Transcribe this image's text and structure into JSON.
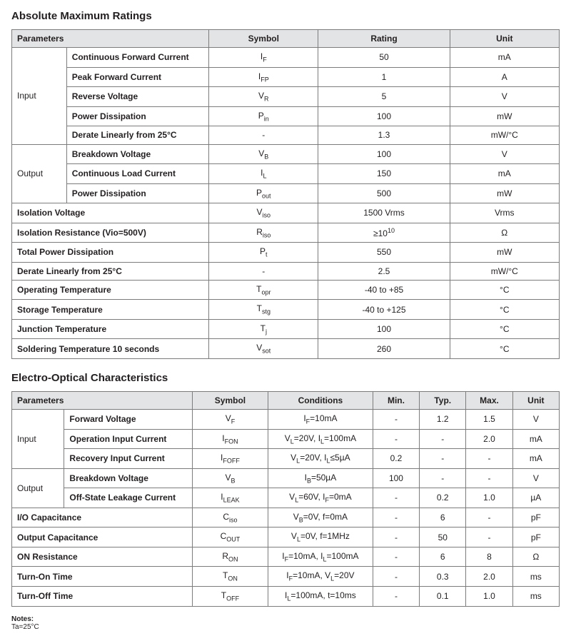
{
  "section1": {
    "title": "Absolute Maximum Ratings",
    "columns": [
      "Parameters",
      "Symbol",
      "Rating",
      "Unit"
    ],
    "groups": [
      {
        "label": "Input",
        "rows": [
          {
            "param": "Continuous Forward Current",
            "symbol": "I<sub>F</sub>",
            "rating": "50",
            "unit": "mA"
          },
          {
            "param": "Peak Forward Current",
            "symbol": "I<sub>FP</sub>",
            "rating": "1",
            "unit": "A"
          },
          {
            "param": "Reverse Voltage",
            "symbol": "V<sub>R</sub>",
            "rating": "5",
            "unit": "V"
          },
          {
            "param": "Power Dissipation",
            "symbol": "P<sub>in</sub>",
            "rating": "100",
            "unit": "mW"
          },
          {
            "param": "Derate Linearly from 25°C",
            "symbol": "-",
            "rating": "1.3",
            "unit": "mW/°C"
          }
        ]
      },
      {
        "label": "Output",
        "rows": [
          {
            "param": "Breakdown Voltage",
            "symbol": "V<sub>B</sub>",
            "rating": "100",
            "unit": "V"
          },
          {
            "param": "Continuous Load Current",
            "symbol": "I<sub>L</sub>",
            "rating": "150",
            "unit": "mA"
          },
          {
            "param": "Power Dissipation",
            "symbol": "P<sub>out</sub>",
            "rating": "500",
            "unit": "mW"
          }
        ]
      }
    ],
    "flat": [
      {
        "param": "Isolation Voltage",
        "symbol": "V<sub>iso</sub>",
        "rating": "1500 Vrms",
        "unit": "Vrms"
      },
      {
        "param": "Isolation Resistance (Vio=500V)",
        "symbol": "R<sub>iso</sub>",
        "rating": "≥10<sup>10</sup>",
        "unit": "Ω"
      },
      {
        "param": "Total Power Dissipation",
        "symbol": "P<sub>t</sub>",
        "rating": "550",
        "unit": "mW"
      },
      {
        "param": "Derate Linearly from 25°C",
        "symbol": "-",
        "rating": "2.5",
        "unit": "mW/°C"
      },
      {
        "param": "Operating Temperature",
        "symbol": "T<sub>opr</sub>",
        "rating": "-40 to +85",
        "unit": "°C"
      },
      {
        "param": "Storage Temperature",
        "symbol": "T<sub>stg</sub>",
        "rating": "-40 to +125",
        "unit": "°C"
      },
      {
        "param": "Junction Temperature",
        "symbol": "T<sub>j</sub>",
        "rating": "100",
        "unit": "°C"
      },
      {
        "param": "Soldering Temperature 10 seconds",
        "symbol": "V<sub>sot</sub>",
        "rating": "260",
        "unit": "°C"
      }
    ],
    "col_widths": [
      "10%",
      "26%",
      "20%",
      "24%",
      "20%"
    ]
  },
  "section2": {
    "title": "Electro-Optical Characteristics",
    "columns": [
      "Parameters",
      "Symbol",
      "Conditions",
      "Min.",
      "Typ.",
      "Max.",
      "Unit"
    ],
    "groups": [
      {
        "label": "Input",
        "rows": [
          {
            "param": "Forward Voltage",
            "symbol": "V<sub>F</sub>",
            "cond": "I<sub>F</sub>=10mA",
            "min": "-",
            "typ": "1.2",
            "max": "1.5",
            "unit": "V"
          },
          {
            "param": "Operation Input Current",
            "symbol": "I<sub>FON</sub>",
            "cond": "V<sub>L</sub>=20V, I<sub>L</sub>=100mA",
            "min": "-",
            "typ": "-",
            "max": "2.0",
            "unit": "mA"
          },
          {
            "param": "Recovery Input Current",
            "symbol": "I<sub>FOFF</sub>",
            "cond": "V<sub>L</sub>=20V, I<sub>L</sub>≤5µA",
            "min": "0.2",
            "typ": "-",
            "max": "-",
            "unit": "mA"
          }
        ]
      },
      {
        "label": "Output",
        "rows": [
          {
            "param": "Breakdown Voltage",
            "symbol": "V<sub>B</sub>",
            "cond": "I<sub>B</sub>=50µA",
            "min": "100",
            "typ": "-",
            "max": "-",
            "unit": "V"
          },
          {
            "param": "Off-State Leakage Current",
            "symbol": "I<sub>LEAK</sub>",
            "cond": "V<sub>L</sub>=60V, I<sub>F</sub>=0mA",
            "min": "-",
            "typ": "0.2",
            "max": "1.0",
            "unit": "µA"
          }
        ]
      }
    ],
    "flat": [
      {
        "param": "I/O Capacitance",
        "symbol": "C<sub>iso</sub>",
        "cond": "V<sub>B</sub>=0V, f=0mA",
        "min": "-",
        "typ": "6",
        "max": "-",
        "unit": "pF"
      },
      {
        "param": "Output Capacitance",
        "symbol": "C<sub>OUT</sub>",
        "cond": "V<sub>L</sub>=0V, f=1MHz",
        "min": "-",
        "typ": "50",
        "max": "-",
        "unit": "pF"
      },
      {
        "param": "ON Resistance",
        "symbol": "R<sub>ON</sub>",
        "cond": "I<sub>F</sub>=10mA, I<sub>L</sub>=100mA",
        "min": "-",
        "typ": "6",
        "max": "8",
        "unit": "Ω"
      },
      {
        "param": "Turn-On Time",
        "symbol": "T<sub>ON</sub>",
        "cond": "I<sub>F</sub>=10mA, V<sub>L</sub>=20V",
        "min": "-",
        "typ": "0.3",
        "max": "2.0",
        "unit": "ms"
      },
      {
        "param": "Turn-Off Time",
        "symbol": "T<sub>OFF</sub>",
        "cond": "I<sub>L</sub>=100mA, t=10ms",
        "min": "-",
        "typ": "0.1",
        "max": "1.0",
        "unit": "ms"
      }
    ],
    "col_widths": [
      "9%",
      "22%",
      "13%",
      "18%",
      "8%",
      "8%",
      "8%",
      "8%"
    ]
  },
  "notes": {
    "label": "Notes:",
    "body": "Ta=25°C"
  }
}
